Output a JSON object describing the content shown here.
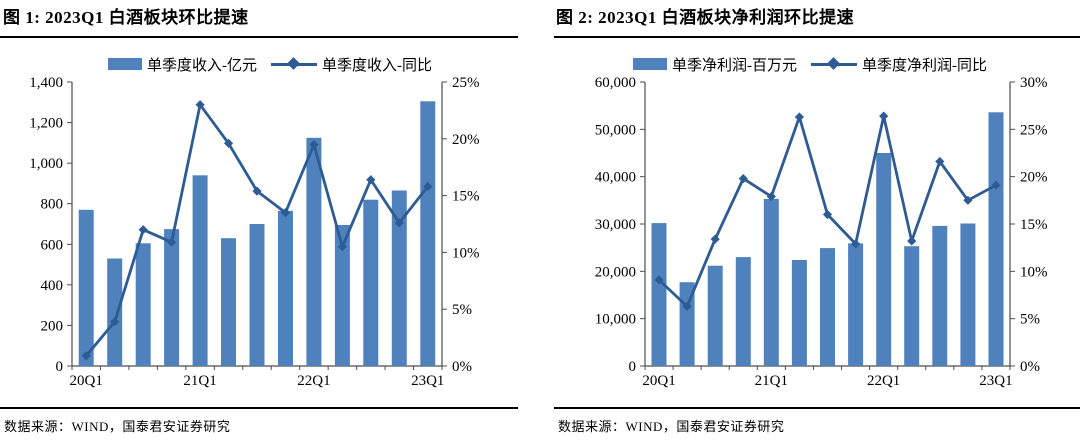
{
  "colors": {
    "bar": "#4F81BD",
    "line": "#2E5B94",
    "axis": "#4d4d4d",
    "label_text": "#000000"
  },
  "charts": [
    {
      "title": "图 1:  2023Q1 白酒板块环比提速",
      "legend": {
        "bar_label": "单季度收入-亿元",
        "line_label": "单季度收入-同比"
      },
      "source": "数据来源：WIND，国泰君安证券研究"
    },
    {
      "title": "图 2:  2023Q1 白酒板块净利润环比提速",
      "legend": {
        "bar_label": "单季净利润-百万元",
        "line_label": "单季度净利润-同比"
      },
      "source": "数据来源：WIND，国泰君安证券研究"
    }
  ],
  "chart_data": [
    {
      "type": "bar",
      "title": "图 1: 2023Q1 白酒板块环比提速",
      "categories": [
        "20Q1",
        "20Q2",
        "20Q3",
        "20Q4",
        "21Q1",
        "21Q2",
        "21Q3",
        "21Q4",
        "22Q1",
        "22Q2",
        "22Q3",
        "22Q4",
        "23Q1"
      ],
      "x_tick_labels": [
        "20Q1",
        "21Q1",
        "22Q1",
        "23Q1"
      ],
      "x_tick_label_indices": [
        0,
        4,
        8,
        12
      ],
      "series": [
        {
          "name": "单季度收入-亿元",
          "type": "bar",
          "axis": "left",
          "values": [
            770,
            530,
            605,
            675,
            940,
            630,
            700,
            765,
            1125,
            695,
            820,
            865,
            1305
          ]
        },
        {
          "name": "单季度收入-同比",
          "type": "line",
          "axis": "right",
          "unit": "%",
          "values": [
            0.9,
            3.9,
            12.0,
            10.9,
            23.0,
            19.6,
            15.4,
            13.5,
            19.5,
            10.5,
            16.4,
            12.6,
            15.8
          ]
        }
      ],
      "left_axis": {
        "min": 0,
        "max": 1400,
        "step": 200,
        "format": "thousands"
      },
      "right_axis": {
        "min": 0,
        "max": 25,
        "step": 5,
        "format": "percent"
      },
      "grid": false,
      "legend_position": "top"
    },
    {
      "type": "bar",
      "title": "图 2: 2023Q1 白酒板块净利润环比提速",
      "categories": [
        "20Q1",
        "20Q2",
        "20Q3",
        "20Q4",
        "21Q1",
        "21Q2",
        "21Q3",
        "21Q4",
        "22Q1",
        "22Q2",
        "22Q3",
        "22Q4",
        "23Q1"
      ],
      "x_tick_labels": [
        "20Q1",
        "21Q1",
        "22Q1",
        "23Q1"
      ],
      "x_tick_label_indices": [
        0,
        4,
        8,
        12
      ],
      "series": [
        {
          "name": "单季净利润-百万元",
          "type": "bar",
          "axis": "left",
          "values": [
            30200,
            17700,
            21200,
            23000,
            35300,
            22400,
            24900,
            25900,
            45000,
            25300,
            29600,
            30100,
            53600
          ]
        },
        {
          "name": "单季度净利润-同比",
          "type": "line",
          "axis": "right",
          "unit": "%",
          "values": [
            9.1,
            6.3,
            13.4,
            19.8,
            17.9,
            26.3,
            16.0,
            12.9,
            26.4,
            13.2,
            21.6,
            17.5,
            19.1
          ]
        }
      ],
      "left_axis": {
        "min": 0,
        "max": 60000,
        "step": 10000,
        "format": "thousands"
      },
      "right_axis": {
        "min": 0,
        "max": 30,
        "step": 5,
        "format": "percent"
      },
      "grid": false,
      "legend_position": "top"
    }
  ]
}
